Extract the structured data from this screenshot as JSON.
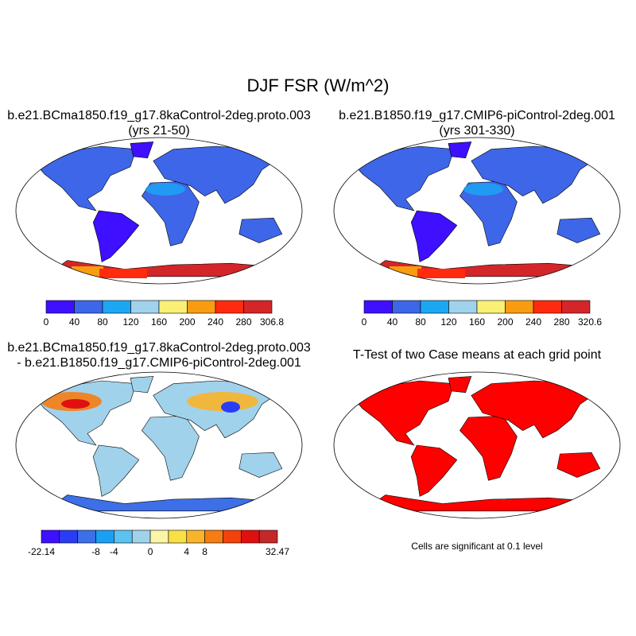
{
  "figure_title": "DJF FSR (W/m^2)",
  "colors": {
    "ocean": "#ffffff",
    "land_outline": "#000000",
    "significant": "#ff0000",
    "scale_seq": [
      "#3f0fff",
      "#3e66e8",
      "#1aa8f5",
      "#a0d2ec",
      "#f9f075",
      "#f99c12",
      "#ff2b0c",
      "#d42628"
    ],
    "scale_diff": [
      "#3f0fff",
      "#2a3df5",
      "#3d6fe8",
      "#1aa0f2",
      "#5cc2f0",
      "#a0d2ec",
      "#fbf5a8",
      "#f9e046",
      "#f9b42a",
      "#f67d12",
      "#f3420a",
      "#e01010",
      "#c42828"
    ]
  },
  "chart_data": [
    {
      "type": "map",
      "panel": "case-1",
      "title_line1": "b.e21.BCma1850.f19_g17.8kaControl-2deg.proto.003",
      "title_line2": "(yrs 21-50)",
      "colorbar_labels": [
        "0",
        "40",
        "80",
        "120",
        "160",
        "200",
        "240",
        "280",
        "306.8"
      ],
      "range": [
        0,
        306.8
      ]
    },
    {
      "type": "map",
      "panel": "case-2",
      "title_line1": "b.e21.B1850.f19_g17.CMIP6-piControl-2deg.001",
      "title_line2": "(yrs 301-330)",
      "colorbar_labels": [
        "0",
        "40",
        "80",
        "120",
        "160",
        "200",
        "240",
        "280",
        "320.6"
      ],
      "range": [
        0,
        320.6
      ]
    },
    {
      "type": "map",
      "panel": "difference",
      "title_line1": "b.e21.BCma1850.f19_g17.8kaControl-2deg.proto.003",
      "title_line2": "- b.e21.B1850.f19_g17.CMIP6-piControl-2deg.001",
      "colorbar_labels": [
        "-22.14",
        "-8",
        "-4",
        "0",
        "4",
        "8",
        "32.47"
      ],
      "range": [
        -22.14,
        32.47
      ]
    },
    {
      "type": "map",
      "panel": "t-test",
      "title_line1": "T-Test of two Case means at each grid point",
      "note": "Cells are significant at 0.1 level",
      "significance_level": 0.1
    }
  ]
}
